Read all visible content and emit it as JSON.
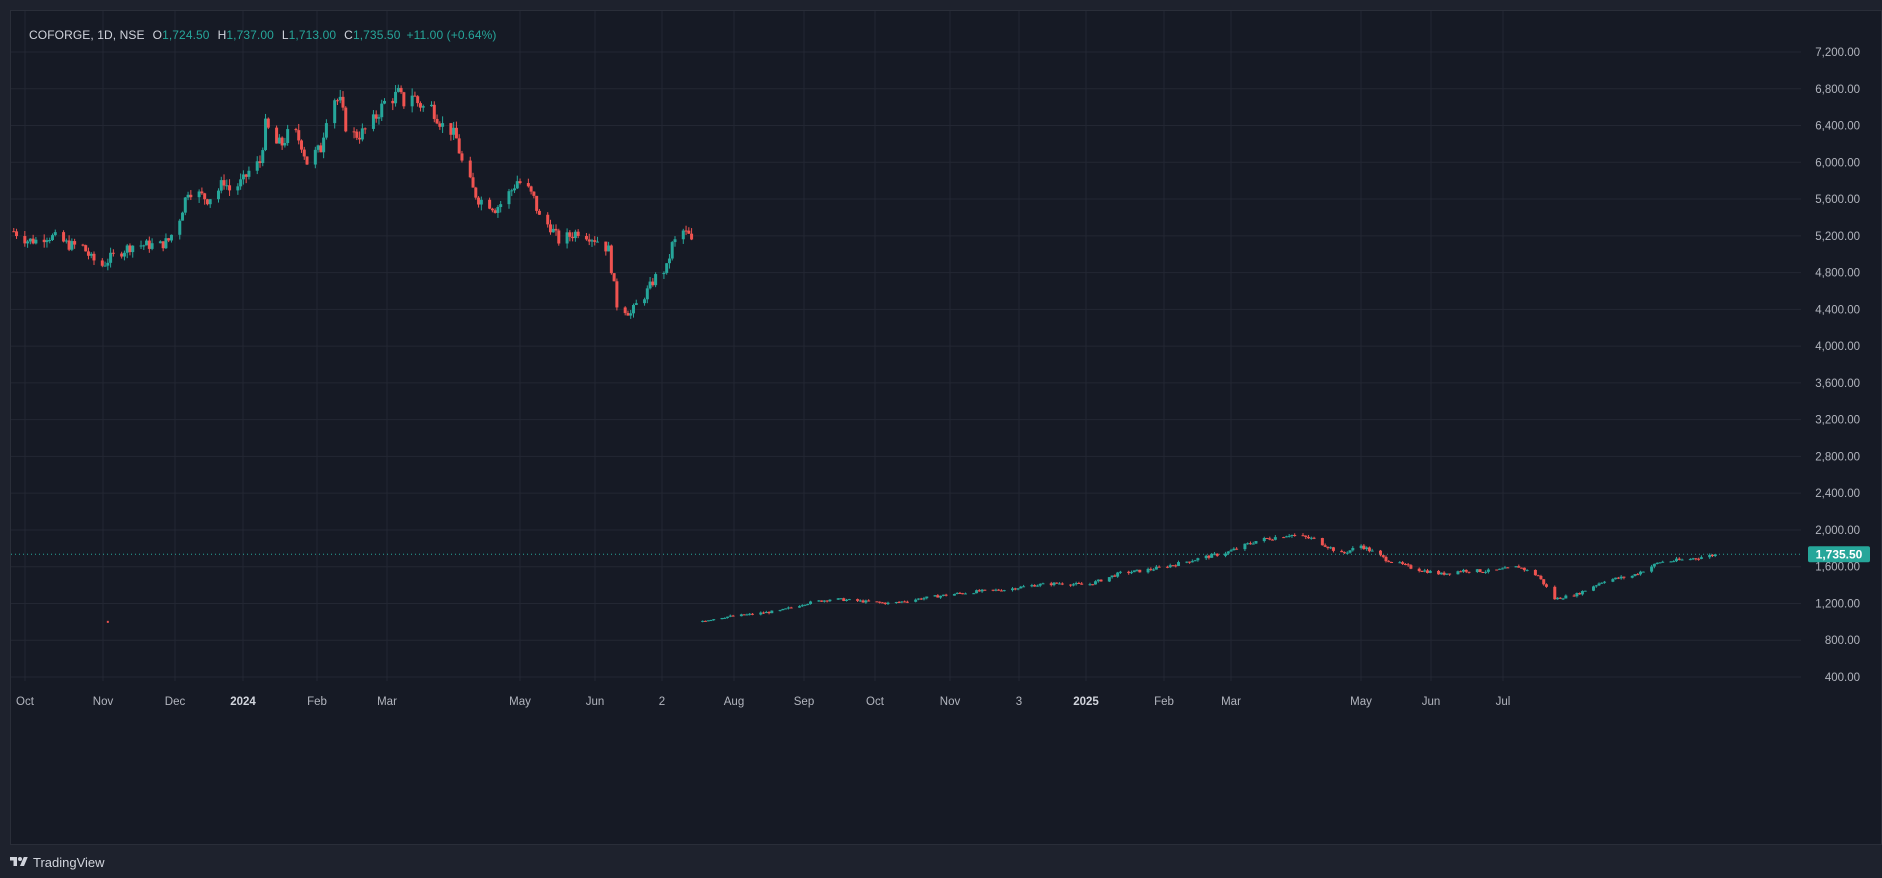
{
  "legend": {
    "symbol": "COFORGE, 1D, NSE",
    "open_label": "O",
    "open": "1,724.50",
    "high_label": "H",
    "high": "1,737.00",
    "low_label": "L",
    "low": "1,713.00",
    "close_label": "C",
    "close": "1,735.50",
    "change": "+11.00 (+0.64%)"
  },
  "footer": {
    "brand": "TradingView",
    "logo_icon": "tradingview-logo-icon"
  },
  "colors": {
    "background": "#161a25",
    "grid": "#232733",
    "up": "#26a69a",
    "down": "#ef5350",
    "price_line": "#26a69a",
    "axis_text": "#b2b5be"
  },
  "chart_data": {
    "type": "candlestick",
    "symbol": "COFORGE",
    "interval": "1D",
    "exchange": "NSE",
    "last_price": 1735.5,
    "last_price_label": "1,735.50",
    "ylim": [
      400,
      7400
    ],
    "y_ticks": [
      "7,200.00",
      "6,800.00",
      "6,400.00",
      "6,000.00",
      "5,600.00",
      "5,200.00",
      "4,800.00",
      "4,400.00",
      "4,000.00",
      "3,600.00",
      "3,200.00",
      "2,800.00",
      "2,400.00",
      "2,000.00",
      "1,600.00",
      "1,200.00",
      "800.00",
      "400.00"
    ],
    "x_ticks": [
      "Oct",
      "Nov",
      "Dec",
      "2024",
      "Feb",
      "Mar",
      "May",
      "Jun",
      "2",
      "Aug",
      "Sep",
      "Oct",
      "Nov",
      "3",
      "2025",
      "Feb",
      "Mar",
      "May",
      "Jun",
      "Jul"
    ],
    "x_ticks_bold": [
      "2024",
      "2025"
    ],
    "x_range": [
      "2023-09-27",
      "2025-07-05"
    ],
    "grid": true,
    "segments": [
      {
        "name": "pre-split",
        "days": [
          [
            "2023-09-28",
            5250
          ],
          [
            "2023-10-03",
            5150
          ],
          [
            "2023-10-06",
            5150
          ],
          [
            "2023-10-10",
            5200
          ],
          [
            "2023-10-13",
            5180
          ],
          [
            "2023-10-18",
            5100
          ],
          [
            "2023-10-23",
            5080
          ],
          [
            "2023-10-26",
            4950
          ],
          [
            "2023-10-30",
            4880
          ],
          [
            "2023-11-02",
            4960
          ],
          [
            "2023-11-07",
            5050
          ],
          [
            "2023-11-10",
            5100
          ],
          [
            "2023-11-15",
            5100
          ],
          [
            "2023-11-20",
            5100
          ],
          [
            "2023-11-23",
            5150
          ],
          [
            "2023-11-27",
            5400
          ],
          [
            "2023-11-30",
            5700
          ],
          [
            "2023-12-04",
            5650
          ],
          [
            "2023-12-07",
            5600
          ],
          [
            "2023-12-11",
            5700
          ],
          [
            "2023-12-13",
            5800
          ],
          [
            "2023-12-15",
            5700
          ],
          [
            "2023-12-18",
            5750
          ],
          [
            "2023-12-20",
            5800
          ],
          [
            "2023-12-22",
            5900
          ],
          [
            "2023-12-26",
            6000
          ],
          [
            "2023-12-28",
            6400
          ],
          [
            "2024-01-01",
            6200
          ],
          [
            "2024-01-03",
            6200
          ],
          [
            "2024-01-05",
            6300
          ],
          [
            "2024-01-08",
            6300
          ],
          [
            "2024-01-10",
            6200
          ],
          [
            "2024-01-12",
            6000
          ],
          [
            "2024-01-15",
            6100
          ],
          [
            "2024-01-17",
            6150
          ],
          [
            "2024-01-19",
            6500
          ],
          [
            "2024-01-22",
            6700
          ],
          [
            "2024-01-24",
            6650
          ],
          [
            "2024-01-26",
            6400
          ],
          [
            "2024-01-29",
            6300
          ],
          [
            "2024-01-31",
            6300
          ],
          [
            "2024-02-02",
            6350
          ],
          [
            "2024-02-05",
            6450
          ],
          [
            "2024-02-07",
            6550
          ],
          [
            "2024-02-09",
            6650
          ],
          [
            "2024-02-12",
            6700
          ],
          [
            "2024-02-14",
            6750
          ],
          [
            "2024-02-16",
            6650
          ],
          [
            "2024-02-19",
            6750
          ],
          [
            "2024-02-21",
            6650
          ],
          [
            "2024-02-23",
            6600
          ],
          [
            "2024-02-26",
            6600
          ],
          [
            "2024-02-28",
            6500
          ],
          [
            "2024-03-01",
            6400
          ],
          [
            "2024-03-04",
            6350
          ],
          [
            "2024-03-06",
            6250
          ],
          [
            "2024-03-08",
            6000
          ],
          [
            "2024-03-12",
            5700
          ],
          [
            "2024-03-14",
            5600
          ],
          [
            "2024-03-18",
            5550
          ],
          [
            "2024-03-20",
            5500
          ],
          [
            "2024-03-22",
            5550
          ],
          [
            "2024-03-26",
            5700
          ],
          [
            "2024-03-28",
            5800
          ],
          [
            "2024-04-01",
            5700
          ],
          [
            "2024-04-03",
            5600
          ],
          [
            "2024-04-05",
            5400
          ],
          [
            "2024-04-09",
            5300
          ],
          [
            "2024-04-12",
            5150
          ],
          [
            "2024-04-16",
            5200
          ],
          [
            "2024-04-19",
            5250
          ],
          [
            "2024-04-23",
            5200
          ],
          [
            "2024-04-26",
            5150
          ],
          [
            "2024-04-30",
            5050
          ],
          [
            "2024-05-03",
            4450
          ],
          [
            "2024-05-06",
            4400
          ],
          [
            "2024-05-08",
            4350
          ],
          [
            "2024-05-10",
            4450
          ],
          [
            "2024-05-13",
            4550
          ],
          [
            "2024-05-15",
            4650
          ],
          [
            "2024-05-17",
            4750
          ],
          [
            "2024-05-21",
            4850
          ],
          [
            "2024-05-23",
            5100
          ],
          [
            "2024-05-27",
            5250
          ],
          [
            "2024-05-29",
            5200
          ],
          [
            "2024-05-31",
            5050
          ]
        ]
      },
      {
        "name": "isolated-point",
        "days": [
          [
            "2023-11-01",
            1000
          ]
        ]
      },
      {
        "name": "post-split",
        "days": [
          [
            "2024-06-01",
            1000
          ],
          [
            "2024-06-10",
            1050
          ],
          [
            "2024-06-20",
            1080
          ],
          [
            "2024-07-01",
            1120
          ],
          [
            "2024-07-10",
            1200
          ],
          [
            "2024-07-20",
            1250
          ],
          [
            "2024-08-01",
            1220
          ],
          [
            "2024-08-10",
            1200
          ],
          [
            "2024-08-20",
            1250
          ],
          [
            "2024-09-01",
            1300
          ],
          [
            "2024-09-10",
            1330
          ],
          [
            "2024-09-20",
            1350
          ],
          [
            "2024-10-01",
            1400
          ],
          [
            "2024-10-10",
            1420
          ],
          [
            "2024-10-20",
            1400
          ],
          [
            "2024-11-01",
            1530
          ],
          [
            "2024-11-10",
            1560
          ],
          [
            "2024-11-20",
            1620
          ],
          [
            "2024-12-01",
            1700
          ],
          [
            "2024-12-10",
            1760
          ],
          [
            "2024-12-20",
            1880
          ],
          [
            "2025-01-01",
            1950
          ],
          [
            "2025-01-10",
            1900
          ],
          [
            "2025-01-20",
            1740
          ],
          [
            "2025-01-27",
            1830
          ],
          [
            "2025-02-05",
            1680
          ],
          [
            "2025-02-15",
            1580
          ],
          [
            "2025-02-25",
            1520
          ],
          [
            "2025-03-05",
            1560
          ],
          [
            "2025-03-15",
            1550
          ],
          [
            "2025-03-25",
            1600
          ],
          [
            "2025-04-01",
            1500
          ],
          [
            "2025-04-07",
            1250
          ],
          [
            "2025-04-15",
            1300
          ],
          [
            "2025-04-25",
            1450
          ],
          [
            "2025-05-05",
            1500
          ],
          [
            "2025-05-15",
            1650
          ],
          [
            "2025-05-25",
            1680
          ],
          [
            "2025-06-05",
            1735.5
          ]
        ]
      }
    ]
  }
}
